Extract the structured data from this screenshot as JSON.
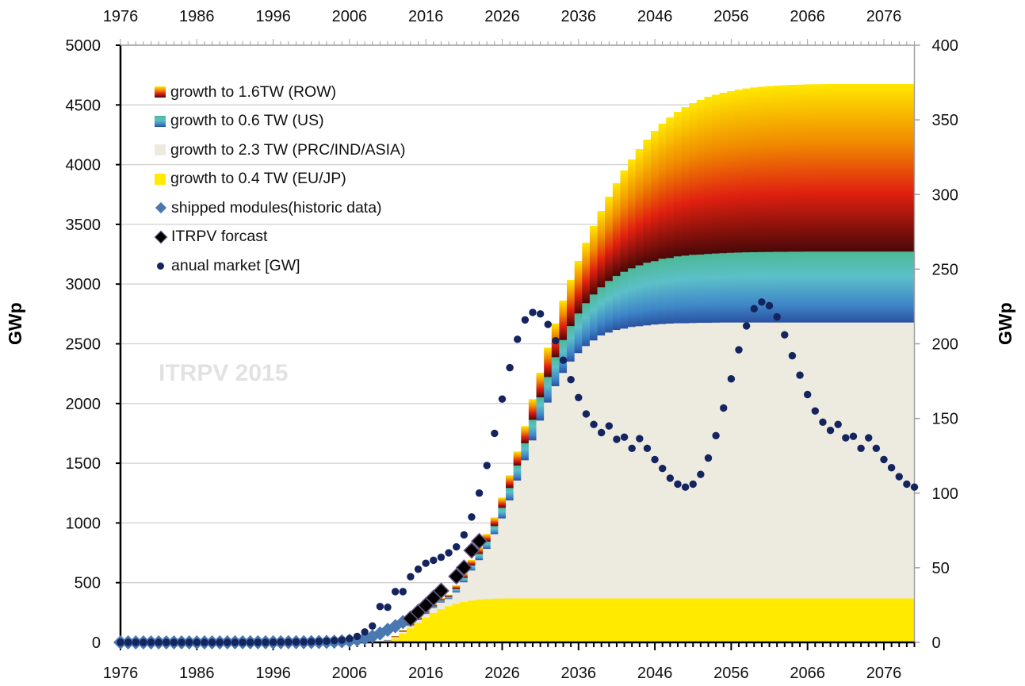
{
  "chart_data": {
    "type": "stacked-area+scatter",
    "watermark": "ITRPV 2015",
    "xlabel": "",
    "ylabel_left": "GWp",
    "ylabel_right": "GWp",
    "xlim": [
      1976,
      2080
    ],
    "ylim_left": [
      0,
      5000
    ],
    "ylim_right": [
      0,
      400
    ],
    "grid": "horizontal",
    "legend_position": "top-left",
    "x_ticks": [
      "1976",
      "1986",
      "1996",
      "2006",
      "2016",
      "2026",
      "2036",
      "2046",
      "2056",
      "2066",
      "2076"
    ],
    "y_left_ticks": [
      "0",
      "500",
      "1000",
      "1500",
      "2000",
      "2500",
      "3000",
      "3500",
      "4000",
      "4500",
      "5000"
    ],
    "y_right_ticks": [
      "0",
      "50",
      "100",
      "150",
      "200",
      "250",
      "300",
      "350",
      "400"
    ],
    "colors": {
      "eu_jp": "#ffea00",
      "prc": "#edeae0",
      "us": [
        "#4db896",
        "#5cc0c8",
        "#3f86c8",
        "#2a52a0"
      ],
      "row": [
        "#ffe800",
        "#f08a00",
        "#e02010",
        "#4a0808"
      ],
      "historic": "#4a78b0",
      "itrpv": "#000000",
      "annual": "#14245e",
      "grid": "#d0d0d0"
    },
    "x": [
      1976,
      1977,
      1978,
      1979,
      1980,
      1981,
      1982,
      1983,
      1984,
      1985,
      1986,
      1987,
      1988,
      1989,
      1990,
      1991,
      1992,
      1993,
      1994,
      1995,
      1996,
      1997,
      1998,
      1999,
      2000,
      2001,
      2002,
      2003,
      2004,
      2005,
      2006,
      2007,
      2008,
      2009,
      2010,
      2011,
      2012,
      2013,
      2014,
      2015,
      2016,
      2017,
      2018,
      2019,
      2020,
      2021,
      2022,
      2023,
      2024,
      2025,
      2026,
      2027,
      2028,
      2029,
      2030,
      2031,
      2032,
      2033,
      2034,
      2035,
      2036,
      2037,
      2038,
      2039,
      2040,
      2041,
      2042,
      2043,
      2044,
      2045,
      2046,
      2047,
      2048,
      2049,
      2050,
      2051,
      2052,
      2053,
      2054,
      2055,
      2056,
      2057,
      2058,
      2059,
      2060,
      2061,
      2062,
      2063,
      2064,
      2065,
      2066,
      2067,
      2068,
      2069,
      2070,
      2071,
      2072,
      2073,
      2074,
      2075,
      2076,
      2077,
      2078,
      2079,
      2080
    ],
    "stacked_series": [
      {
        "name": "growth to 0.4 TW (EU/JP)",
        "key": "eu_jp",
        "axis": "left",
        "values": [
          0,
          0,
          0,
          0,
          0,
          0,
          0,
          0,
          0,
          0,
          0,
          0,
          0,
          0,
          0,
          0,
          0,
          0,
          0,
          0,
          0,
          0,
          0,
          0,
          0,
          0,
          0,
          0,
          0,
          0,
          0,
          0,
          0,
          0,
          3,
          12,
          35,
          75,
          120,
          165,
          210,
          248,
          280,
          305,
          325,
          340,
          352,
          360,
          365,
          368,
          369,
          370,
          370,
          370,
          370,
          370,
          370,
          370,
          370,
          370,
          370,
          370,
          370,
          370,
          370,
          370,
          370,
          370,
          370,
          370,
          370,
          370,
          370,
          370,
          370,
          370,
          370,
          370,
          370,
          370,
          370,
          370,
          370,
          370,
          370,
          370,
          370,
          370,
          370,
          370,
          370,
          370,
          370,
          370,
          370,
          370,
          370,
          370,
          370,
          370,
          370,
          370,
          370,
          370,
          370
        ]
      },
      {
        "name": "growth  to 2.3 TW (PRC/IND/ASIA)",
        "key": "prc",
        "axis": "left",
        "values": [
          0,
          0,
          0,
          0,
          0,
          0,
          0,
          0,
          0,
          0,
          0,
          0,
          0,
          0,
          0,
          0,
          0,
          0,
          0,
          0,
          0,
          0,
          0,
          0,
          0,
          0,
          0,
          0,
          0,
          0,
          0,
          0,
          0,
          0,
          2,
          6,
          10,
          15,
          20,
          25,
          30,
          42,
          55,
          60,
          95,
          165,
          252,
          331,
          420,
          540,
          671,
          821,
          987,
          1157,
          1323,
          1489,
          1640,
          1777,
          1888,
          1983,
          2054,
          2113,
          2160,
          2202,
          2226,
          2248,
          2259,
          2273,
          2279,
          2286,
          2293,
          2297,
          2301,
          2304,
          2304,
          2306,
          2308,
          2308,
          2309,
          2310,
          2310,
          2310,
          2310,
          2310,
          2310,
          2310,
          2310,
          2310,
          2310,
          2310,
          2310,
          2310,
          2310,
          2310,
          2310,
          2310,
          2310,
          2310,
          2310,
          2310,
          2310,
          2310,
          2310,
          2310,
          2310
        ]
      },
      {
        "name": "growth to 0.6 TW (US)",
        "key": "us",
        "axis": "left",
        "values": [
          0,
          0,
          0,
          0,
          0,
          0,
          0,
          0,
          0,
          0,
          0,
          0,
          0,
          0,
          0,
          0,
          0,
          0,
          0,
          0,
          0,
          0,
          0,
          0,
          0,
          0,
          0,
          0,
          0,
          0,
          0,
          0,
          0,
          0,
          1,
          2,
          4,
          6,
          8,
          10,
          12,
          15,
          18,
          18,
          29,
          37,
          43,
          52,
          61,
          68,
          89,
          104,
          126,
          142,
          173,
          195,
          214,
          243,
          276,
          298,
          332,
          359,
          385,
          403,
          432,
          452,
          476,
          491,
          510,
          525,
          531,
          547,
          549,
          560,
          566,
          571,
          571,
          576,
          579,
          581,
          584,
          586,
          588,
          589,
          590,
          591,
          592,
          592,
          593,
          593,
          594,
          594,
          594,
          594,
          594,
          594,
          594,
          594,
          594,
          594,
          594,
          594,
          594,
          594,
          594
        ]
      },
      {
        "name": "growth to 1.6TW (ROW)",
        "key": "row",
        "axis": "left",
        "values": [
          0,
          0,
          0,
          0,
          0,
          0,
          0,
          0,
          0,
          0,
          0,
          0,
          0,
          0,
          0,
          0,
          0,
          0,
          0,
          0,
          0,
          0,
          0,
          0,
          0,
          0,
          0,
          0,
          0,
          0,
          0,
          0,
          0,
          0,
          1,
          2,
          4,
          6,
          8,
          10,
          12,
          15,
          18,
          17,
          29,
          38,
          44,
          52,
          62,
          71,
          84,
          104,
          115,
          142,
          171,
          204,
          244,
          281,
          328,
          384,
          438,
          505,
          571,
          637,
          704,
          775,
          846,
          910,
          971,
          1029,
          1089,
          1129,
          1176,
          1208,
          1242,
          1268,
          1293,
          1314,
          1328,
          1341,
          1352,
          1362,
          1370,
          1377,
          1383,
          1387,
          1390,
          1393,
          1395,
          1397,
          1398,
          1399,
          1400,
          1401,
          1401,
          1401,
          1401,
          1401,
          1401,
          1401,
          1401,
          1401,
          1401,
          1401,
          1401
        ]
      }
    ],
    "historic": {
      "name": "shipped modules(historic data)",
      "axis": "left",
      "marker": "diamond",
      "x": [
        1976,
        1977,
        1978,
        1979,
        1980,
        1981,
        1982,
        1983,
        1984,
        1985,
        1986,
        1987,
        1988,
        1989,
        1990,
        1991,
        1992,
        1993,
        1994,
        1995,
        1996,
        1997,
        1998,
        1999,
        2000,
        2001,
        2002,
        2003,
        2004,
        2005,
        2006,
        2007,
        2008,
        2009,
        2010,
        2011,
        2012,
        2013
      ],
      "values": [
        0,
        0,
        0,
        0,
        0,
        0,
        0,
        0,
        0,
        0,
        0,
        0,
        0,
        0,
        0.5,
        0.5,
        0.6,
        0.7,
        0.8,
        0.9,
        1,
        1.2,
        1.4,
        1.6,
        2,
        2.5,
        3,
        4,
        6,
        9,
        14,
        22,
        35,
        50,
        75,
        105,
        135,
        170
      ]
    },
    "itrpv": {
      "name": "ITRPV forcast",
      "axis": "left",
      "marker": "diamond",
      "x": [
        2014,
        2015,
        2016,
        2017,
        2018,
        2020,
        2021,
        2022,
        2023
      ],
      "values": [
        199,
        254,
        310,
        372,
        432,
        553,
        626,
        770,
        848
      ]
    },
    "annual": {
      "name": "anual market [GW]",
      "axis": "right",
      "marker": "circle",
      "values": [
        0,
        0,
        0,
        0,
        0,
        0,
        0,
        0,
        0,
        0,
        0,
        0,
        0,
        0,
        0,
        0,
        0,
        0,
        0,
        0,
        0.1,
        0.2,
        0.2,
        0.3,
        0.3,
        0.4,
        0.6,
        0.8,
        1.2,
        1.5,
        2.5,
        4,
        7,
        11,
        24,
        23.5,
        34,
        34,
        44,
        49,
        53,
        55,
        57,
        60,
        64,
        72,
        84,
        100,
        118.5,
        140,
        163,
        184,
        203,
        216,
        221,
        220,
        213,
        202,
        189,
        176,
        164,
        153,
        146,
        140.5,
        145,
        136,
        137.5,
        130,
        136.5,
        130,
        122.5,
        116.5,
        110,
        106,
        104,
        106,
        112.5,
        123.5,
        138.5,
        157,
        176.5,
        196,
        212,
        223.5,
        228,
        225.5,
        218,
        206,
        192,
        179,
        166,
        155,
        147.5,
        142,
        146,
        137,
        138,
        130,
        137,
        130,
        122.5,
        117,
        111,
        106,
        104
      ]
    }
  },
  "legend": {
    "items": [
      {
        "label": "growth to 1.6TW (ROW)"
      },
      {
        "label": "growth to 0.6 TW (US)"
      },
      {
        "label": "growth  to 2.3 TW (PRC/IND/ASIA)"
      },
      {
        "label": "growth to 0.4 TW (EU/JP)"
      },
      {
        "label": "shipped modules(historic data)"
      },
      {
        "label": "ITRPV forcast"
      },
      {
        "label": "anual market [GW]"
      }
    ]
  }
}
